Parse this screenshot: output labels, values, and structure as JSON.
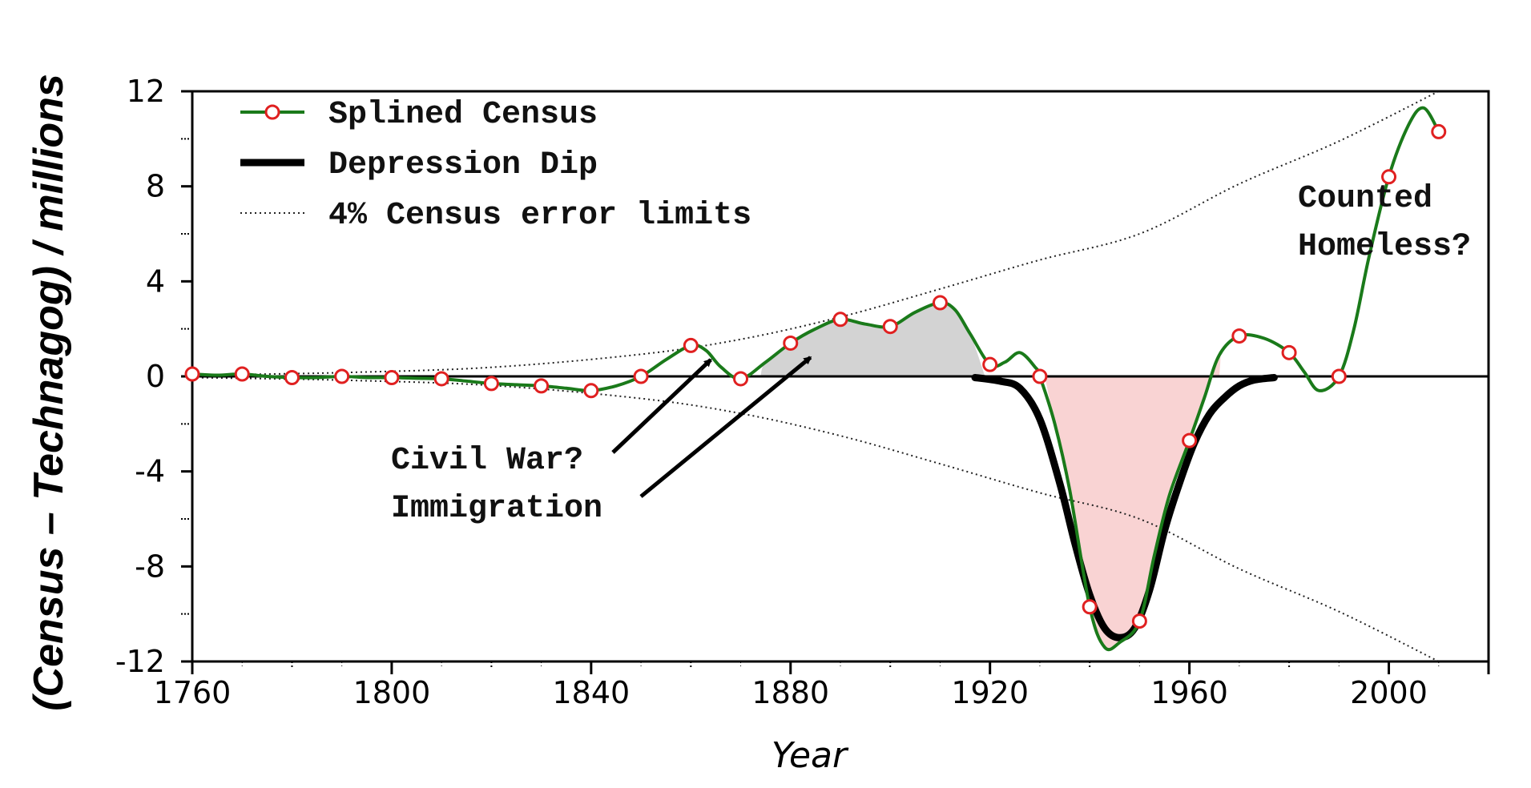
{
  "chart_data": {
    "type": "line",
    "title": "",
    "xlabel": "Year",
    "ylabel": "(Census – Technagog) / millions",
    "xlim": [
      1760,
      2020
    ],
    "ylim": [
      -12,
      12
    ],
    "x_ticks": [
      1760,
      1800,
      1840,
      1880,
      1920,
      1960,
      2000
    ],
    "x_tick_labels": [
      "1760",
      "1800",
      "1840",
      "1880",
      "1920",
      "1960",
      "2000"
    ],
    "y_ticks": [
      12,
      8,
      4,
      0,
      -4,
      -8,
      -12
    ],
    "y_tick_labels": [
      "12",
      "8",
      "4",
      "0",
      "-4",
      "-8",
      "-12"
    ],
    "grid": false,
    "legend_position": "top-left",
    "legend": [
      {
        "label": "Splined Census",
        "style": "green line with hollow red circles"
      },
      {
        "label": "Depression Dip",
        "style": "thick black line"
      },
      {
        "label": "4% Census error limits",
        "style": "dotted line"
      }
    ],
    "series": [
      {
        "name": "Splined Census",
        "color": "#1a7a1a",
        "marker_color": "#e02020",
        "points": [
          [
            1760,
            0.1
          ],
          [
            1770,
            0.1
          ],
          [
            1780,
            -0.05
          ],
          [
            1790,
            0.0
          ],
          [
            1800,
            -0.05
          ],
          [
            1810,
            -0.1
          ],
          [
            1820,
            -0.3
          ],
          [
            1830,
            -0.4
          ],
          [
            1840,
            -0.6
          ],
          [
            1850,
            0.0
          ],
          [
            1860,
            1.3
          ],
          [
            1870,
            -0.1
          ],
          [
            1880,
            1.4
          ],
          [
            1890,
            2.4
          ],
          [
            1900,
            2.1
          ],
          [
            1910,
            3.1
          ],
          [
            1920,
            0.5
          ],
          [
            1930,
            0.0
          ],
          [
            1940,
            -9.7
          ],
          [
            1950,
            -10.3
          ],
          [
            1960,
            -2.7
          ],
          [
            1970,
            1.7
          ],
          [
            1980,
            1.0
          ],
          [
            1990,
            0.0
          ],
          [
            2000,
            8.4
          ],
          [
            2010,
            10.3
          ]
        ],
        "curve": [
          [
            1760,
            0.1
          ],
          [
            1765,
            0.05
          ],
          [
            1770,
            0.1
          ],
          [
            1775,
            0.0
          ],
          [
            1780,
            -0.05
          ],
          [
            1785,
            -0.05
          ],
          [
            1790,
            0.0
          ],
          [
            1795,
            -0.05
          ],
          [
            1800,
            -0.05
          ],
          [
            1805,
            -0.08
          ],
          [
            1810,
            -0.1
          ],
          [
            1815,
            -0.2
          ],
          [
            1820,
            -0.3
          ],
          [
            1825,
            -0.35
          ],
          [
            1830,
            -0.4
          ],
          [
            1835,
            -0.5
          ],
          [
            1840,
            -0.6
          ],
          [
            1845,
            -0.4
          ],
          [
            1850,
            0.0
          ],
          [
            1855,
            0.7
          ],
          [
            1860,
            1.3
          ],
          [
            1863,
            1.1
          ],
          [
            1866,
            0.4
          ],
          [
            1870,
            -0.1
          ],
          [
            1875,
            0.6
          ],
          [
            1880,
            1.4
          ],
          [
            1885,
            2.0
          ],
          [
            1890,
            2.4
          ],
          [
            1895,
            2.2
          ],
          [
            1900,
            2.1
          ],
          [
            1905,
            2.7
          ],
          [
            1910,
            3.1
          ],
          [
            1913,
            2.8
          ],
          [
            1916,
            1.8
          ],
          [
            1920,
            0.5
          ],
          [
            1923,
            0.6
          ],
          [
            1926,
            1.0
          ],
          [
            1929,
            0.4
          ],
          [
            1930,
            0.0
          ],
          [
            1933,
            -2.0
          ],
          [
            1936,
            -4.8
          ],
          [
            1940,
            -9.7
          ],
          [
            1943,
            -11.4
          ],
          [
            1946,
            -11.2
          ],
          [
            1950,
            -10.3
          ],
          [
            1953,
            -7.5
          ],
          [
            1956,
            -5.0
          ],
          [
            1960,
            -2.7
          ],
          [
            1963,
            -0.9
          ],
          [
            1966,
            0.9
          ],
          [
            1970,
            1.7
          ],
          [
            1975,
            1.6
          ],
          [
            1980,
            1.0
          ],
          [
            1983,
            0.2
          ],
          [
            1986,
            -0.6
          ],
          [
            1990,
            0.0
          ],
          [
            1993,
            2.0
          ],
          [
            1996,
            5.0
          ],
          [
            2000,
            8.4
          ],
          [
            2004,
            10.6
          ],
          [
            2007,
            11.3
          ],
          [
            2010,
            10.3
          ]
        ]
      },
      {
        "name": "Depression Dip",
        "color": "#000000",
        "curve": [
          [
            1917,
            -0.05
          ],
          [
            1922,
            -0.2
          ],
          [
            1926,
            -0.5
          ],
          [
            1930,
            -1.8
          ],
          [
            1934,
            -4.5
          ],
          [
            1937,
            -7.0
          ],
          [
            1940,
            -9.2
          ],
          [
            1943,
            -10.6
          ],
          [
            1946,
            -11.0
          ],
          [
            1949,
            -10.6
          ],
          [
            1952,
            -9.0
          ],
          [
            1955,
            -6.5
          ],
          [
            1958,
            -4.5
          ],
          [
            1961,
            -2.8
          ],
          [
            1964,
            -1.6
          ],
          [
            1967,
            -0.9
          ],
          [
            1970,
            -0.4
          ],
          [
            1973,
            -0.15
          ],
          [
            1977,
            -0.05
          ]
        ]
      },
      {
        "name": "4% Census error limits (upper)",
        "style": "dotted",
        "curve": [
          [
            1760,
            0.05
          ],
          [
            1790,
            0.16
          ],
          [
            1820,
            0.38
          ],
          [
            1850,
            0.93
          ],
          [
            1870,
            1.56
          ],
          [
            1890,
            2.5
          ],
          [
            1910,
            3.68
          ],
          [
            1930,
            4.9
          ],
          [
            1950,
            6.0
          ],
          [
            1970,
            8.1
          ],
          [
            1990,
            9.9
          ],
          [
            2010,
            12.0
          ]
        ]
      },
      {
        "name": "4% Census error limits (lower)",
        "style": "dotted",
        "curve": [
          [
            1760,
            -0.05
          ],
          [
            1790,
            -0.16
          ],
          [
            1820,
            -0.38
          ],
          [
            1850,
            -0.93
          ],
          [
            1870,
            -1.56
          ],
          [
            1890,
            -2.5
          ],
          [
            1910,
            -3.68
          ],
          [
            1930,
            -4.9
          ],
          [
            1950,
            -6.0
          ],
          [
            1970,
            -8.1
          ],
          [
            1990,
            -9.9
          ],
          [
            2010,
            -12.0
          ]
        ]
      }
    ],
    "shaded_regions": [
      {
        "color": "#d3d3d3",
        "x_range": [
          1874,
          1919
        ],
        "fill_to": "zero"
      },
      {
        "color": "#f9d3d3",
        "x_range": [
          1931,
          1966
        ],
        "fill_to": "zero"
      }
    ],
    "annotations": [
      {
        "text": "Civil War?",
        "x": 1810,
        "y": -3.5,
        "arrow_to": [
          1864,
          0.7
        ]
      },
      {
        "text": "Immigration",
        "x": 1810,
        "y": -5.5,
        "arrow_to": [
          1884,
          0.8
        ]
      },
      {
        "text": "Counted",
        "x": 1982,
        "y": 7.3
      },
      {
        "text": "Homeless?",
        "x": 1982,
        "y": 5.3
      }
    ]
  }
}
